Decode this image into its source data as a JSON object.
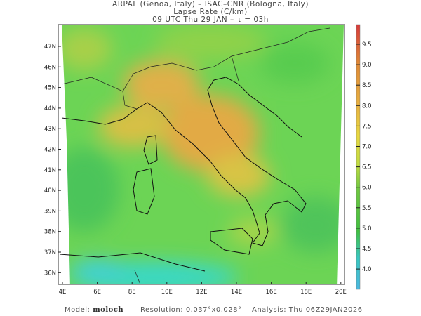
{
  "header": {
    "line1": "ARPAL (Genoa, Italy)  –  ISAC–CNR (Bologna, Italy)",
    "line2": "Lapse Rate (C/km)",
    "line3": "09 UTC Thu 29 JAN  –  τ = 03h"
  },
  "map": {
    "variable": "Lapse Rate",
    "units": "C/km",
    "watermark": "ARPAL",
    "lat_labels": [
      "47N",
      "46N",
      "45N",
      "44N",
      "43N",
      "42N",
      "41N",
      "40N",
      "39N",
      "38N",
      "37N",
      "36N"
    ],
    "lon_labels": [
      "4E",
      "6E",
      "8E",
      "10E",
      "12E",
      "14E",
      "16E",
      "18E",
      "20E"
    ]
  },
  "colorbar": {
    "ticks": [
      "9.5",
      "9.0",
      "8.5",
      "8.0",
      "7.5",
      "7.0",
      "6.5",
      "6.0",
      "5.5",
      "5.0",
      "4.5",
      "4.0"
    ],
    "colors": [
      "#e04040",
      "#e07030",
      "#e09a35",
      "#e8b840",
      "#e8d840",
      "#c8e040",
      "#80d040",
      "#40c040",
      "#30c8a0",
      "#40c0e0"
    ]
  },
  "footer": {
    "model_label": "Model:",
    "model_value": "moloch",
    "resolution_label": "Resolution:",
    "resolution_value": "0.037°x0.028°",
    "analysis_label": "Analysis:",
    "analysis_value": "Thu  06Z29JAN2026"
  }
}
